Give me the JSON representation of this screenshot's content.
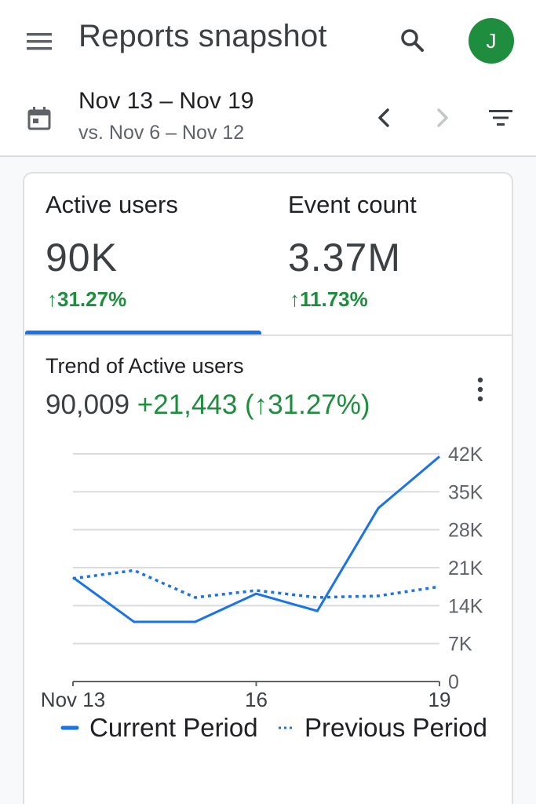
{
  "header": {
    "title": "Reports snapshot",
    "avatar_initial": "J",
    "menu_icon": "menu-icon",
    "search_icon": "search-icon"
  },
  "date_bar": {
    "range": "Nov 13 – Nov 19",
    "compare": "vs. Nov 6 – Nov 12",
    "calendar_icon": "calendar-icon",
    "prev_icon": "chevron-left-icon",
    "next_icon": "chevron-right-icon",
    "filter_icon": "filter-icon"
  },
  "metrics": [
    {
      "label": "Active users",
      "value": "90K",
      "change": "↑31.27%",
      "selected": true
    },
    {
      "label": "Event count",
      "value": "3.37M",
      "change": "↑11.73%",
      "selected": false
    }
  ],
  "trend": {
    "title": "Trend of Active users",
    "total": "90,009",
    "delta": "+21,443",
    "pct": "(↑31.27%)"
  },
  "colors": {
    "accent": "#1a73e8",
    "positive": "#1e8e3e",
    "avatar": "#1e8e3e"
  },
  "chart_data": {
    "type": "line",
    "x": [
      13,
      14,
      15,
      16,
      17,
      18,
      19
    ],
    "x_tick_labels": [
      "Nov 13",
      "16",
      "19"
    ],
    "x_tick_values": [
      13,
      16,
      19
    ],
    "y_tick_labels": [
      "0",
      "7K",
      "14K",
      "21K",
      "28K",
      "35K",
      "42K"
    ],
    "y_tick_values": [
      0,
      7000,
      14000,
      21000,
      28000,
      35000,
      42000
    ],
    "ylim": [
      0,
      42000
    ],
    "y_axis_side": "right",
    "grid": true,
    "legend_position": "bottom",
    "series": [
      {
        "name": "Current Period",
        "style": "solid",
        "values": [
          19200,
          11000,
          11000,
          16200,
          13000,
          32000,
          41500
        ]
      },
      {
        "name": "Previous Period",
        "style": "dotted",
        "values": [
          19000,
          20500,
          15500,
          16800,
          15500,
          15800,
          17500
        ]
      }
    ]
  }
}
